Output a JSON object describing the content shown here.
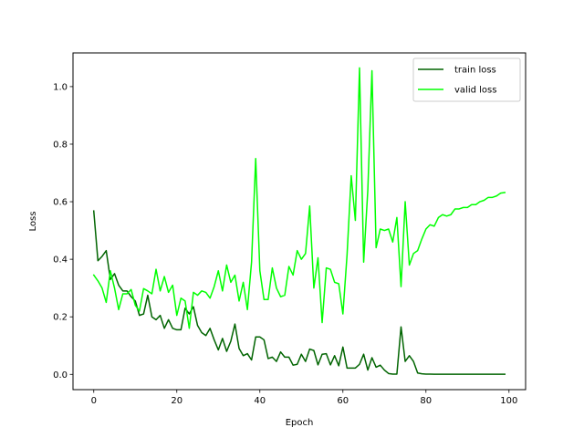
{
  "chart_data": {
    "type": "line",
    "xlabel": "Epoch",
    "ylabel": "Loss",
    "xlim": [
      -5,
      104
    ],
    "ylim": [
      -0.053,
      1.117
    ],
    "xticks": [
      0,
      20,
      40,
      60,
      80,
      100
    ],
    "yticks": [
      0.0,
      0.2,
      0.4,
      0.6,
      0.8,
      1.0
    ],
    "xtick_labels": [
      "0",
      "20",
      "40",
      "60",
      "80",
      "100"
    ],
    "ytick_labels": [
      "0.0",
      "0.2",
      "0.4",
      "0.6",
      "0.8",
      "1.0"
    ],
    "grid": false,
    "legend_position": "top-right",
    "x": [
      0,
      1,
      2,
      3,
      4,
      5,
      6,
      7,
      8,
      9,
      10,
      11,
      12,
      13,
      14,
      15,
      16,
      17,
      18,
      19,
      20,
      21,
      22,
      23,
      24,
      25,
      26,
      27,
      28,
      29,
      30,
      31,
      32,
      33,
      34,
      35,
      36,
      37,
      38,
      39,
      40,
      41,
      42,
      43,
      44,
      45,
      46,
      47,
      48,
      49,
      50,
      51,
      52,
      53,
      54,
      55,
      56,
      57,
      58,
      59,
      60,
      61,
      62,
      63,
      64,
      65,
      66,
      67,
      68,
      69,
      70,
      71,
      72,
      73,
      74,
      75,
      76,
      77,
      78,
      79,
      80,
      81,
      82,
      83,
      84,
      85,
      86,
      87,
      88,
      89,
      90,
      91,
      92,
      93,
      94,
      95,
      96,
      97,
      98,
      99
    ],
    "series": [
      {
        "name": "train loss",
        "color": "#006400",
        "values": [
          0.568,
          0.395,
          0.41,
          0.43,
          0.33,
          0.35,
          0.31,
          0.29,
          0.29,
          0.27,
          0.255,
          0.205,
          0.21,
          0.275,
          0.2,
          0.19,
          0.205,
          0.16,
          0.19,
          0.16,
          0.155,
          0.155,
          0.23,
          0.21,
          0.235,
          0.17,
          0.145,
          0.135,
          0.16,
          0.12,
          0.085,
          0.125,
          0.08,
          0.115,
          0.175,
          0.09,
          0.065,
          0.072,
          0.05,
          0.13,
          0.13,
          0.12,
          0.055,
          0.06,
          0.045,
          0.078,
          0.06,
          0.06,
          0.032,
          0.035,
          0.07,
          0.045,
          0.088,
          0.083,
          0.033,
          0.07,
          0.072,
          0.033,
          0.065,
          0.03,
          0.095,
          0.022,
          0.022,
          0.022,
          0.035,
          0.07,
          0.015,
          0.058,
          0.025,
          0.032,
          0.015,
          0.003,
          0.001,
          0.001,
          0.165,
          0.045,
          0.065,
          0.045,
          0.005,
          0.002,
          0.001,
          0.001,
          0.0005,
          0.0005,
          0.0005,
          0.0005,
          0.0005,
          0.0005,
          0.0005,
          0.0005,
          0.0005,
          0.0005,
          0.0005,
          0.0005,
          0.0005,
          0.0005,
          0.0005,
          0.0005,
          0.0005,
          0.0005
        ]
      },
      {
        "name": "valid loss",
        "color": "#00ff00",
        "values": [
          0.345,
          0.325,
          0.3,
          0.25,
          0.36,
          0.3,
          0.225,
          0.28,
          0.28,
          0.295,
          0.24,
          0.22,
          0.298,
          0.29,
          0.28,
          0.365,
          0.29,
          0.34,
          0.285,
          0.31,
          0.205,
          0.265,
          0.255,
          0.16,
          0.285,
          0.275,
          0.29,
          0.285,
          0.265,
          0.305,
          0.36,
          0.29,
          0.38,
          0.32,
          0.345,
          0.255,
          0.32,
          0.225,
          0.39,
          0.75,
          0.36,
          0.26,
          0.26,
          0.37,
          0.3,
          0.27,
          0.275,
          0.375,
          0.345,
          0.43,
          0.4,
          0.42,
          0.585,
          0.3,
          0.405,
          0.18,
          0.37,
          0.365,
          0.32,
          0.315,
          0.21,
          0.415,
          0.69,
          0.535,
          1.065,
          0.39,
          0.64,
          1.055,
          0.44,
          0.505,
          0.5,
          0.505,
          0.46,
          0.545,
          0.305,
          0.6,
          0.38,
          0.42,
          0.43,
          0.47,
          0.505,
          0.52,
          0.515,
          0.545,
          0.555,
          0.55,
          0.555,
          0.575,
          0.575,
          0.58,
          0.58,
          0.59,
          0.59,
          0.6,
          0.605,
          0.615,
          0.615,
          0.62,
          0.63,
          0.632
        ]
      }
    ]
  }
}
